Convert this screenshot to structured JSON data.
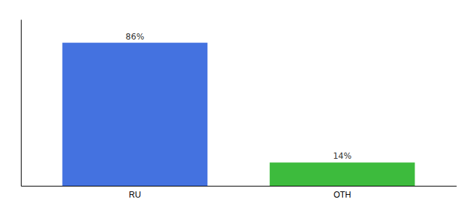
{
  "chart_data": {
    "type": "bar",
    "categories": [
      "RU",
      "OTH"
    ],
    "values": [
      86,
      14
    ],
    "colors": [
      "#4472e0",
      "#3dbb3d"
    ],
    "data_labels": true,
    "value_labels": [
      "86%",
      "14%"
    ],
    "ylim": [
      0,
      100
    ],
    "tick_labels": "x"
  }
}
